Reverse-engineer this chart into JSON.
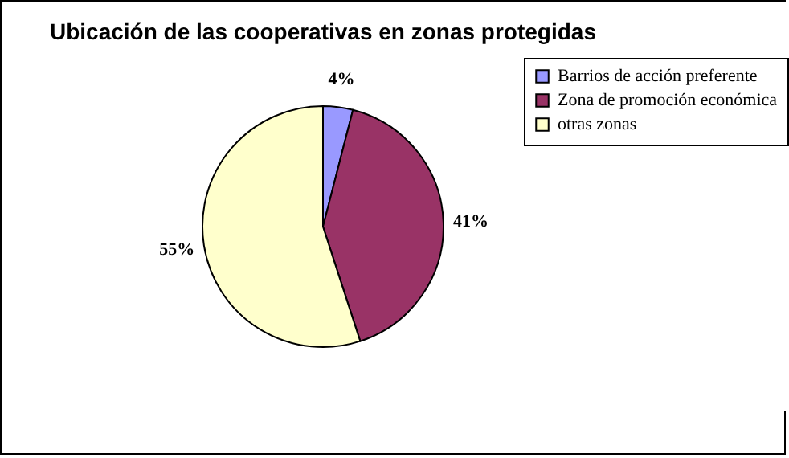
{
  "chart_data": {
    "type": "pie",
    "title": "Ubicación de las cooperativas en zonas protegidas",
    "categories": [
      "Barrios de acción preferente",
      "Zona de promoción económica",
      "otras zonas"
    ],
    "values": [
      4,
      41,
      55
    ],
    "colors": [
      "#9999ff",
      "#993366",
      "#ffffcc"
    ],
    "value_labels": [
      "4%",
      "41%",
      "55%"
    ],
    "legend": "right"
  }
}
